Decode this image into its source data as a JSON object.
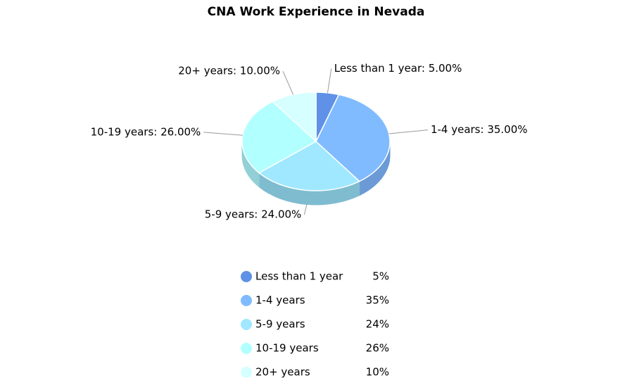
{
  "chart_data": {
    "type": "pie",
    "title": "CNA Work Experience in Nevada",
    "categories": [
      "Less than 1 year",
      "1-4 years",
      "5-9 years",
      "10-19 years",
      "20+ years"
    ],
    "values": [
      5,
      35,
      24,
      26,
      10
    ],
    "value_labels": [
      "Less than 1 year: 5.00%",
      "1-4 years: 35.00%",
      "5-9 years: 24.00%",
      "10-19 years: 26.00%",
      "20+ years: 10.00%"
    ],
    "legend_value_labels": [
      "5%",
      "35%",
      "24%",
      "26%",
      "10%"
    ],
    "colors": [
      "#5f92e6",
      "#80bbff",
      "#a0e8ff",
      "#b2ffff",
      "#d6ffff"
    ],
    "side_colors": [
      "#4f78bd",
      "#6b9ad6",
      "#7fbccf",
      "#93cfd6",
      "#a9cccc"
    ]
  }
}
